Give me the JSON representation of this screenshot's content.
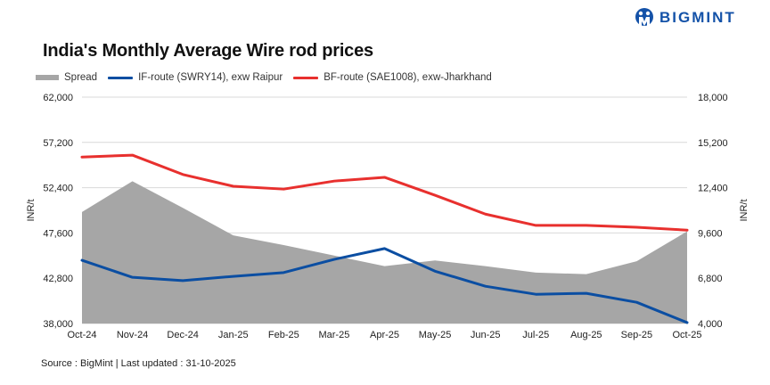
{
  "brand": {
    "name": "BIGMINT",
    "color": "#1452a8"
  },
  "chart_data": {
    "type": "line",
    "title": "India's Monthly Average Wire rod prices",
    "categories": [
      "Oct-24",
      "Nov-24",
      "Dec-24",
      "Jan-25",
      "Feb-25",
      "Mar-25",
      "Apr-25",
      "May-25",
      "Jun-25",
      "Jul-25",
      "Aug-25",
      "Sep-25",
      "Oct-25"
    ],
    "series": [
      {
        "name": "Spread",
        "kind": "area",
        "axis": "right",
        "color": "#a6a6a6",
        "values": [
          10900,
          12800,
          11150,
          9450,
          8850,
          8200,
          7550,
          7900,
          7550,
          7150,
          7050,
          7850,
          9700
        ]
      },
      {
        "name": "IF-route (SWRY14), exw Raipur",
        "kind": "line",
        "axis": "left",
        "color": "#0b4ea2",
        "values": [
          44700,
          42900,
          42550,
          43000,
          43400,
          44800,
          45950,
          43550,
          41950,
          41100,
          41200,
          40250,
          38100
        ]
      },
      {
        "name": "BF-route (SAE1008), exw-Jharkhand",
        "kind": "line",
        "axis": "left",
        "color": "#e8302e",
        "values": [
          55650,
          55850,
          53800,
          52550,
          52250,
          53100,
          53500,
          51600,
          49600,
          48400,
          48400,
          48200,
          47900
        ]
      }
    ],
    "ylabel_left": "INR/t",
    "ylabel_right": "INR/t",
    "ylim_left": [
      38000,
      62000
    ],
    "yticks_left": [
      "62,000",
      "57,200",
      "52,400",
      "47,600",
      "42,800",
      "38,000"
    ],
    "ylim_right": [
      4000,
      18000
    ],
    "yticks_right": [
      "18,000",
      "15,200",
      "12,400",
      "9,600",
      "6,800",
      "4,000"
    ],
    "grid": true,
    "legend_position": "top-left"
  },
  "source": "Source : BigMint | Last updated : 31-10-2025"
}
